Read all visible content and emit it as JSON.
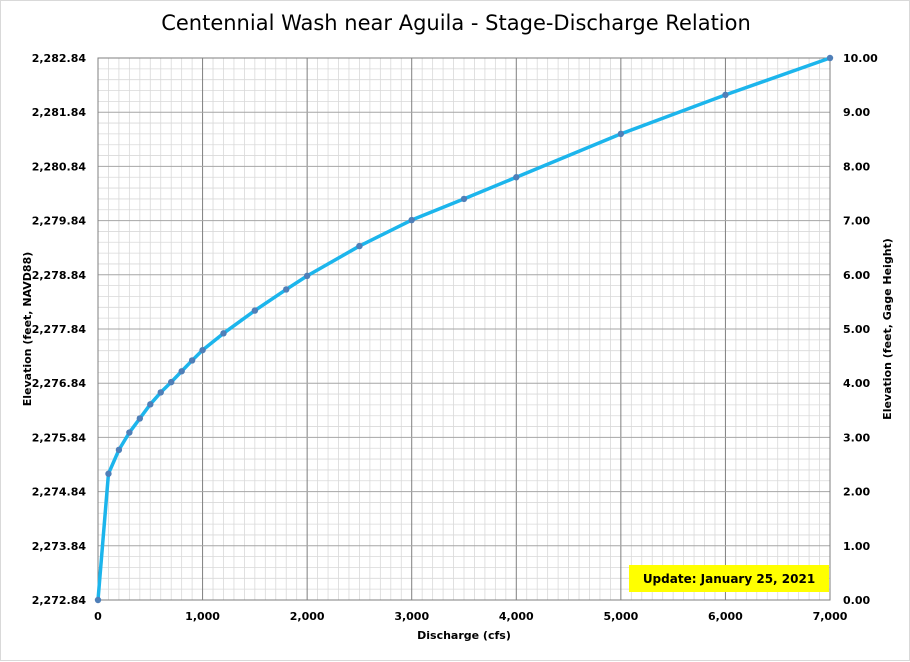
{
  "chart_data": {
    "type": "line",
    "title": "Centennial Wash near Aguila - Stage-Discharge Relation",
    "xlabel": "Discharge  (cfs)",
    "ylabel_left": "Elevation (feet, NAVD88)",
    "ylabel_right": "Elevation (feet, Gage Height)",
    "xlim": [
      0,
      7000
    ],
    "ylim": [
      0,
      10
    ],
    "x_ticks": [
      "0",
      "1,000",
      "2,000",
      "3,000",
      "4,000",
      "5,000",
      "6,000",
      "7,000"
    ],
    "y_ticks_left": [
      "2,272.84",
      "2,273.84",
      "2,274.84",
      "2,275.84",
      "2,276.84",
      "2,277.84",
      "2,278.84",
      "2,279.84",
      "2,280.84",
      "2,281.84",
      "2,282.84"
    ],
    "y_ticks_right": [
      "0.00",
      "1.00",
      "2.00",
      "3.00",
      "4.00",
      "5.00",
      "6.00",
      "7.00",
      "8.00",
      "9.00",
      "10.00"
    ],
    "grid": true,
    "series": [
      {
        "color": "#1cb5ec",
        "marker_color": "#4f7fb8",
        "x": [
          0,
          100,
          200,
          300,
          400,
          500,
          600,
          700,
          800,
          900,
          1000,
          1200,
          1500,
          1800,
          2000,
          2500,
          3000,
          3500,
          4000,
          5000,
          6000,
          7000
        ],
        "y": [
          0.0,
          2.33,
          2.77,
          3.09,
          3.35,
          3.61,
          3.83,
          4.02,
          4.22,
          4.42,
          4.61,
          4.92,
          5.34,
          5.73,
          5.98,
          6.53,
          7.01,
          7.4,
          7.8,
          8.6,
          9.32,
          10.0
        ]
      }
    ]
  },
  "annotation": {
    "text": "Update: January 25, 2021",
    "background": "#ffff00"
  }
}
